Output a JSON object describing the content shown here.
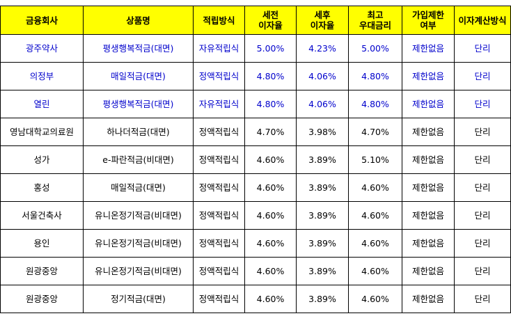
{
  "headers": [
    {
      "l1": "금융회사",
      "l2": ""
    },
    {
      "l1": "상품명",
      "l2": ""
    },
    {
      "l1": "적립방식",
      "l2": ""
    },
    {
      "l1": "세전",
      "l2": "이자율"
    },
    {
      "l1": "세후",
      "l2": "이자율"
    },
    {
      "l1": "최고",
      "l2": "우대금리"
    },
    {
      "l1": "가입제한",
      "l2": "여부"
    },
    {
      "l1": "이자계산방식",
      "l2": ""
    }
  ],
  "rows": [
    {
      "company": "광주약사",
      "product": "평생행복적금(대면)",
      "method": "자유적립식",
      "pre_tax": "5.00%",
      "post_tax": "4.23%",
      "max_pref": "5.00%",
      "restriction": "제한없음",
      "calc": "단리",
      "highlight": true
    },
    {
      "company": "의정부",
      "product": "매일적금(대면)",
      "method": "정액적립식",
      "pre_tax": "4.80%",
      "post_tax": "4.06%",
      "max_pref": "4.80%",
      "restriction": "제한없음",
      "calc": "단리",
      "highlight": true
    },
    {
      "company": "열린",
      "product": "평생행복적금(대면)",
      "method": "자유적립식",
      "pre_tax": "4.80%",
      "post_tax": "4.06%",
      "max_pref": "4.80%",
      "restriction": "제한없음",
      "calc": "단리",
      "highlight": true
    },
    {
      "company": "영남대학교의료원",
      "product": "하나더적금(대면)",
      "method": "정액적립식",
      "pre_tax": "4.70%",
      "post_tax": "3.98%",
      "max_pref": "4.70%",
      "restriction": "제한없음",
      "calc": "단리",
      "highlight": false
    },
    {
      "company": "성가",
      "product": "e-파란적금(비대면)",
      "method": "정액적립식",
      "pre_tax": "4.60%",
      "post_tax": "3.89%",
      "max_pref": "5.10%",
      "restriction": "제한없음",
      "calc": "단리",
      "highlight": false
    },
    {
      "company": "홍성",
      "product": "매일적금(대면)",
      "method": "정액적립식",
      "pre_tax": "4.60%",
      "post_tax": "3.89%",
      "max_pref": "4.60%",
      "restriction": "제한없음",
      "calc": "단리",
      "highlight": false
    },
    {
      "company": "서울건축사",
      "product": "유니온정기적금(비대면)",
      "method": "정액적립식",
      "pre_tax": "4.60%",
      "post_tax": "3.89%",
      "max_pref": "4.60%",
      "restriction": "제한없음",
      "calc": "단리",
      "highlight": false
    },
    {
      "company": "용인",
      "product": "유니온정기적금(비대면)",
      "method": "정액적립식",
      "pre_tax": "4.60%",
      "post_tax": "3.89%",
      "max_pref": "4.60%",
      "restriction": "제한없음",
      "calc": "단리",
      "highlight": false
    },
    {
      "company": "원광중앙",
      "product": "유니온정기적금(비대면)",
      "method": "정액적립식",
      "pre_tax": "4.60%",
      "post_tax": "3.89%",
      "max_pref": "4.60%",
      "restriction": "제한없음",
      "calc": "단리",
      "highlight": false
    },
    {
      "company": "원광중앙",
      "product": "정기적금(대면)",
      "method": "정액적립식",
      "pre_tax": "4.60%",
      "post_tax": "3.89%",
      "max_pref": "4.60%",
      "restriction": "제한없음",
      "calc": "단리",
      "highlight": false
    }
  ],
  "colors": {
    "header_bg": "#ffff00",
    "highlight_text": "#0000cc",
    "border": "#000000"
  }
}
